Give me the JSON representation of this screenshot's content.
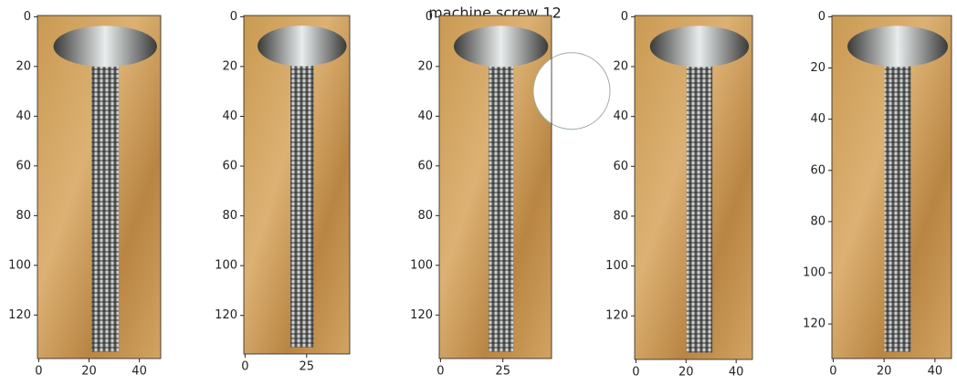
{
  "title": "machine screw 12",
  "panels": [
    {
      "xlim": [
        -0.5,
        48.5
      ],
      "ylim": [
        137.5,
        -0.5
      ],
      "xticks": [
        0,
        20,
        40
      ],
      "yticks": [
        0,
        20,
        40,
        60,
        80,
        100,
        120
      ]
    },
    {
      "xlim": [
        -0.5,
        42.5
      ],
      "ylim": [
        135.5,
        -0.5
      ],
      "xticks": [
        0,
        25
      ],
      "yticks": [
        0,
        20,
        40,
        60,
        80,
        100,
        120
      ]
    },
    {
      "xlim": [
        -0.5,
        44.5
      ],
      "ylim": [
        137.5,
        -0.5
      ],
      "xticks": [
        0,
        25
      ],
      "yticks": [
        0,
        20,
        40,
        60,
        80,
        100,
        120
      ]
    },
    {
      "xlim": [
        -0.5,
        46.5
      ],
      "ylim": [
        137.5,
        -0.5
      ],
      "xticks": [
        0,
        20,
        40
      ],
      "yticks": [
        0,
        20,
        40,
        60,
        80,
        100,
        120
      ]
    },
    {
      "xlim": [
        -0.5,
        46.5
      ],
      "ylim": [
        133.5,
        -0.5
      ],
      "xticks": [
        0,
        20,
        40
      ],
      "yticks": [
        0,
        20,
        40,
        60,
        80,
        100,
        120
      ]
    }
  ]
}
